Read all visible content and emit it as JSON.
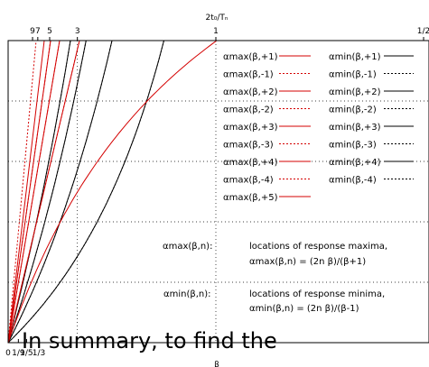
{
  "chart_data": {
    "type": "line",
    "title": "",
    "top_axis_label": "2t₀/Tₙ",
    "top_ticks": [
      {
        "value": 0.0588,
        "label": "9"
      },
      {
        "value": 0.0714,
        "label": "7"
      },
      {
        "value": 0.1,
        "label": "5"
      },
      {
        "value": 0.1667,
        "label": "3"
      },
      {
        "value": 0.5,
        "label": "1"
      },
      {
        "value": 1.0,
        "label": "1/2"
      }
    ],
    "bottom_axis_label": "β",
    "bottom_ticks": [
      {
        "value": 0,
        "label": "0"
      },
      {
        "value": 0.1111,
        "label": "1/9"
      },
      {
        "value": 0.2,
        "label": "1/5"
      },
      {
        "value": 0.3333,
        "label": "1/3"
      }
    ],
    "xlim": [
      0,
      1.6
    ],
    "ylim": [
      0,
      1
    ],
    "grid": true,
    "series": [
      {
        "name": "αmax(β,+1)",
        "n": 1,
        "style": "solid",
        "color": "#d40000"
      },
      {
        "name": "αmax(β,-1)",
        "n": -1,
        "style": "dotted",
        "color": "#d40000"
      },
      {
        "name": "αmax(β,+2)",
        "n": 2,
        "style": "solid",
        "color": "#d40000"
      },
      {
        "name": "αmax(β,-2)",
        "n": -2,
        "style": "dotted",
        "color": "#d40000"
      },
      {
        "name": "αmax(β,+3)",
        "n": 3,
        "style": "solid",
        "color": "#d40000"
      },
      {
        "name": "αmax(β,-3)",
        "n": -3,
        "style": "dotted",
        "color": "#d40000"
      },
      {
        "name": "αmax(β,+4)",
        "n": 4,
        "style": "solid",
        "color": "#d40000"
      },
      {
        "name": "αmax(β,-4)",
        "n": -4,
        "style": "dotted",
        "color": "#d40000"
      },
      {
        "name": "αmax(β,+5)",
        "n": 5,
        "style": "solid",
        "color": "#d40000"
      },
      {
        "name": "αmin(β,+1)",
        "n": 1,
        "style": "solid",
        "color": "#000000"
      },
      {
        "name": "αmin(β,-1)",
        "n": -1,
        "style": "dotted",
        "color": "#000000"
      },
      {
        "name": "αmin(β,+2)",
        "n": 2,
        "style": "solid",
        "color": "#000000"
      },
      {
        "name": "αmin(β,-2)",
        "n": -2,
        "style": "dotted",
        "color": "#000000"
      },
      {
        "name": "αmin(β,+3)",
        "n": 3,
        "style": "solid",
        "color": "#000000"
      },
      {
        "name": "αmin(β,-3)",
        "n": -3,
        "style": "dotted",
        "color": "#000000"
      },
      {
        "name": "αmin(β,+4)",
        "n": 4,
        "style": "solid",
        "color": "#000000"
      },
      {
        "name": "αmin(β,-4)",
        "n": -4,
        "style": "dotted",
        "color": "#000000"
      }
    ],
    "annotations": [
      {
        "term": "αmax(β,n):",
        "description": "locations of response maxima,",
        "formula": "αmax(β,n) = (2n β)/(β+1)"
      },
      {
        "term": "αmin(β,n):",
        "description": "locations of response minima,",
        "formula": "αmin(β,n) = (2n β)/(β-1)"
      }
    ]
  },
  "caption": "In summary, to find the"
}
